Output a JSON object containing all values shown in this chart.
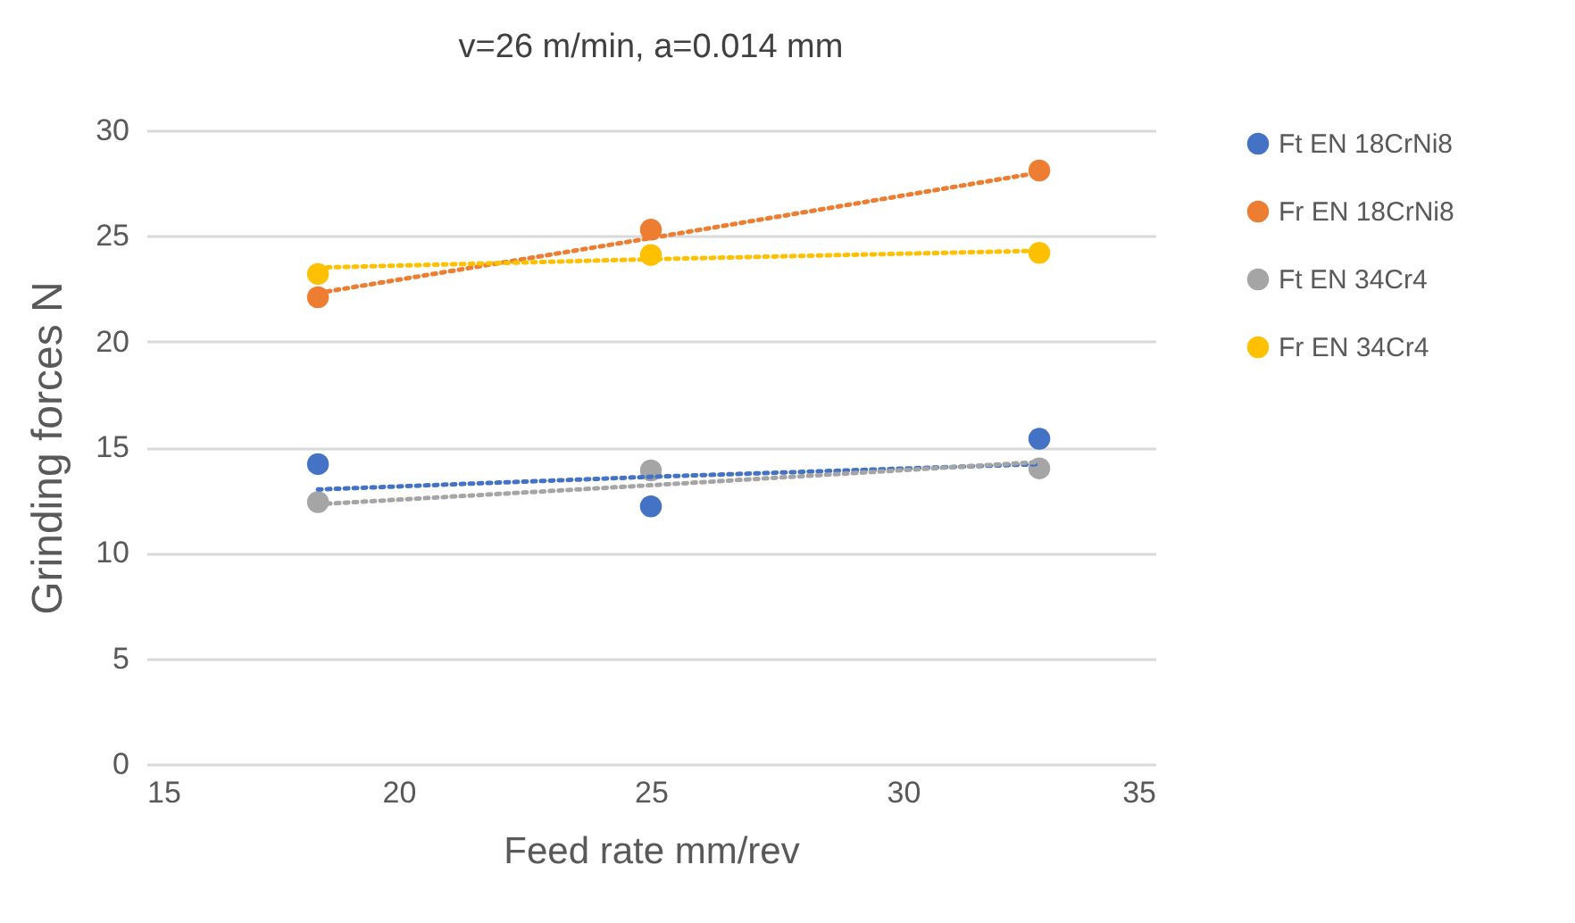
{
  "chart_data": {
    "type": "scatter",
    "title": "v=26 m/min, a=0.014 mm",
    "xlabel": "Feed rate mm/rev",
    "ylabel": "Grinding forces  N",
    "x": [
      18.4,
      25,
      32.7
    ],
    "series": [
      {
        "name": "Ft EN 18CrNi8",
        "color": "#4472c4",
        "values": [
          14.2,
          12.2,
          15.4
        ]
      },
      {
        "name": "Fr EN 18CrNi8",
        "color": "#ed7d31",
        "values": [
          22.1,
          25.3,
          28.1
        ]
      },
      {
        "name": "Ft EN 34Cr4",
        "color": "#a5a5a5",
        "values": [
          12.4,
          13.9,
          14.0
        ]
      },
      {
        "name": "Fr EN 34Cr4",
        "color": "#ffc000",
        "values": [
          23.2,
          24.1,
          24.2
        ]
      },
      {
        "type": "line",
        "color": "#4472c4",
        "values": [
          13.0,
          13.6,
          14.2
        ],
        "line_style": "dotted",
        "marker": "none"
      },
      {
        "type": "line",
        "color": "#ed7d31",
        "values": [
          22.3,
          24.9,
          28.0
        ],
        "line_style": "dotted",
        "marker": "none"
      },
      {
        "type": "line",
        "color": "#a5a5a5",
        "values": [
          12.3,
          13.2,
          14.3
        ],
        "line_style": "dotted",
        "marker": "none"
      },
      {
        "type": "line",
        "color": "#ffc000",
        "values": [
          23.5,
          23.9,
          24.3
        ],
        "line_style": "dotted",
        "marker": "none"
      }
    ],
    "xlim": [
      15,
      35
    ],
    "xticks": [
      15,
      20,
      25,
      30,
      35
    ],
    "ylim": [
      0,
      30
    ],
    "yticks": [
      0,
      5,
      10,
      15,
      20,
      25,
      30
    ],
    "grid": "y",
    "legend": "right",
    "marker": "circle"
  }
}
